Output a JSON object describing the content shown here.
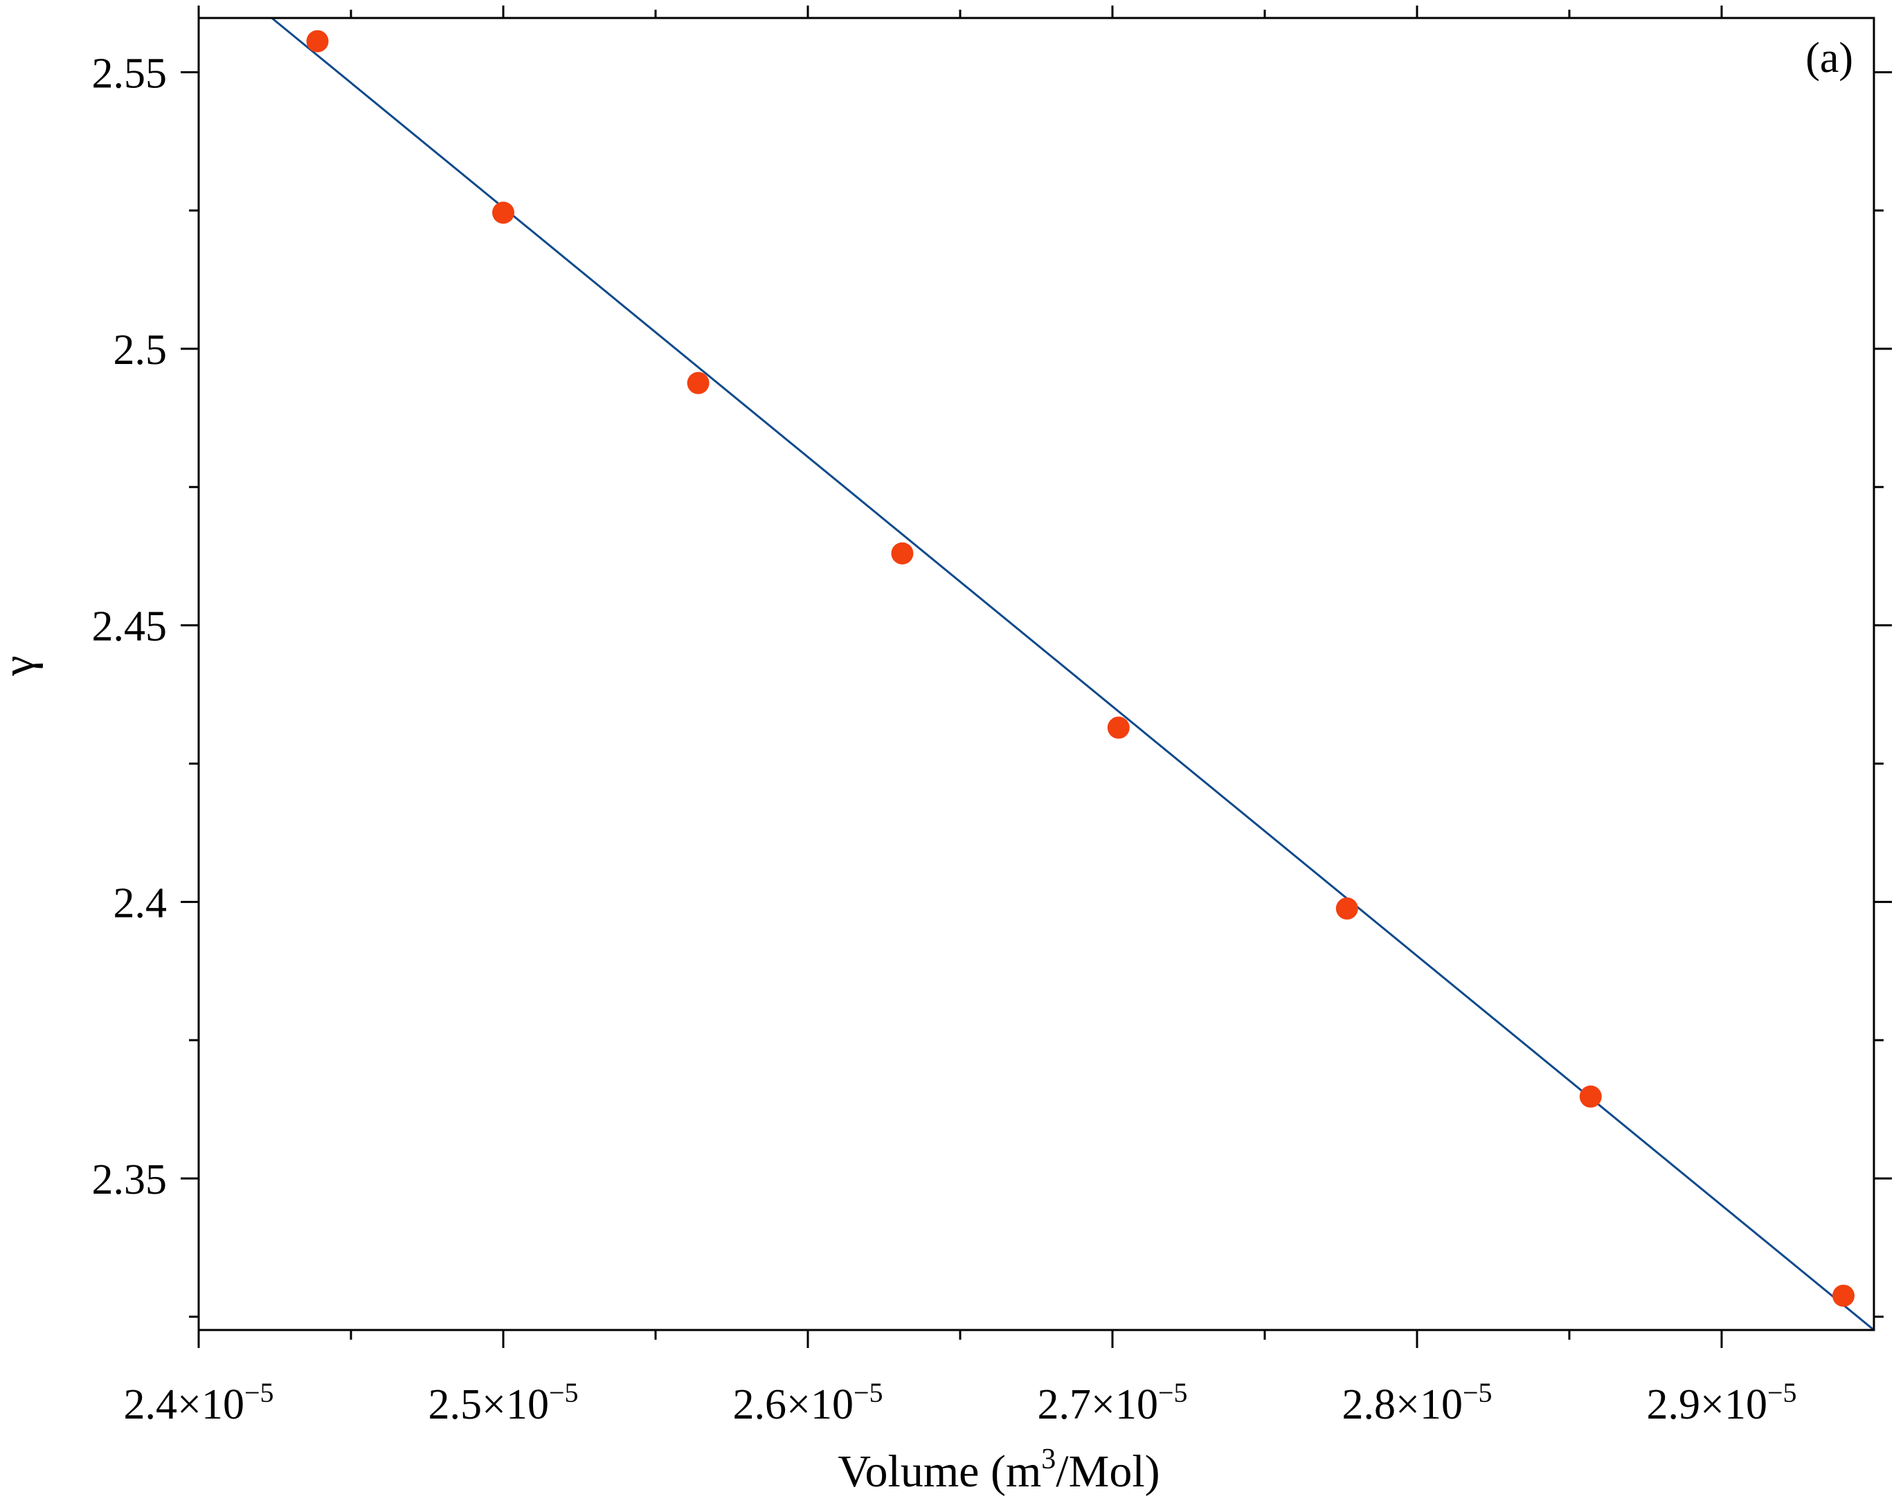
{
  "chart_data": {
    "type": "scatter",
    "panel_label": "(a)",
    "xlabel_parts": [
      "Volume (m",
      "3",
      "/Mol)"
    ],
    "ylabel": "γ",
    "xlim": [
      2.4e-05,
      2.95e-05
    ],
    "ylim": [
      2.3226,
      2.5598
    ],
    "x_ticks": [
      2.4e-05,
      2.5e-05,
      2.6e-05,
      2.7e-05,
      2.8e-05,
      2.9e-05
    ],
    "x_tick_labels": [
      {
        "mantissa": "2.4",
        "exp": "−5"
      },
      {
        "mantissa": "2.5",
        "exp": "−5"
      },
      {
        "mantissa": "2.6",
        "exp": "−5"
      },
      {
        "mantissa": "2.7",
        "exp": "−5"
      },
      {
        "mantissa": "2.8",
        "exp": "−5"
      },
      {
        "mantissa": "2.9",
        "exp": "−5"
      }
    ],
    "x_minor_ticks": [
      2.45e-05,
      2.55e-05,
      2.65e-05,
      2.75e-05,
      2.85e-05
    ],
    "y_ticks": [
      2.35,
      2.4,
      2.45,
      2.5,
      2.55
    ],
    "y_tick_labels": [
      "2.35",
      "2.4",
      "2.45",
      "2.5",
      "2.55"
    ],
    "y_minor_ticks": [
      2.325,
      2.375,
      2.425,
      2.475,
      2.525
    ],
    "series": [
      {
        "kind": "points",
        "color": "#f2400f",
        "x": [
          2.439e-05,
          2.5e-05,
          2.564e-05,
          2.631e-05,
          2.702e-05,
          2.777e-05,
          2.857e-05,
          2.94e-05
        ],
        "y": [
          2.5556,
          2.5246,
          2.4938,
          2.463,
          2.4315,
          2.3988,
          2.3648,
          2.3288
        ]
      },
      {
        "kind": "fit-line",
        "color": "#0d4a8c",
        "x": [
          2.424e-05,
          2.95e-05
        ],
        "y": [
          2.5598,
          2.3226
        ]
      }
    ],
    "grid": false,
    "legend": "none"
  }
}
